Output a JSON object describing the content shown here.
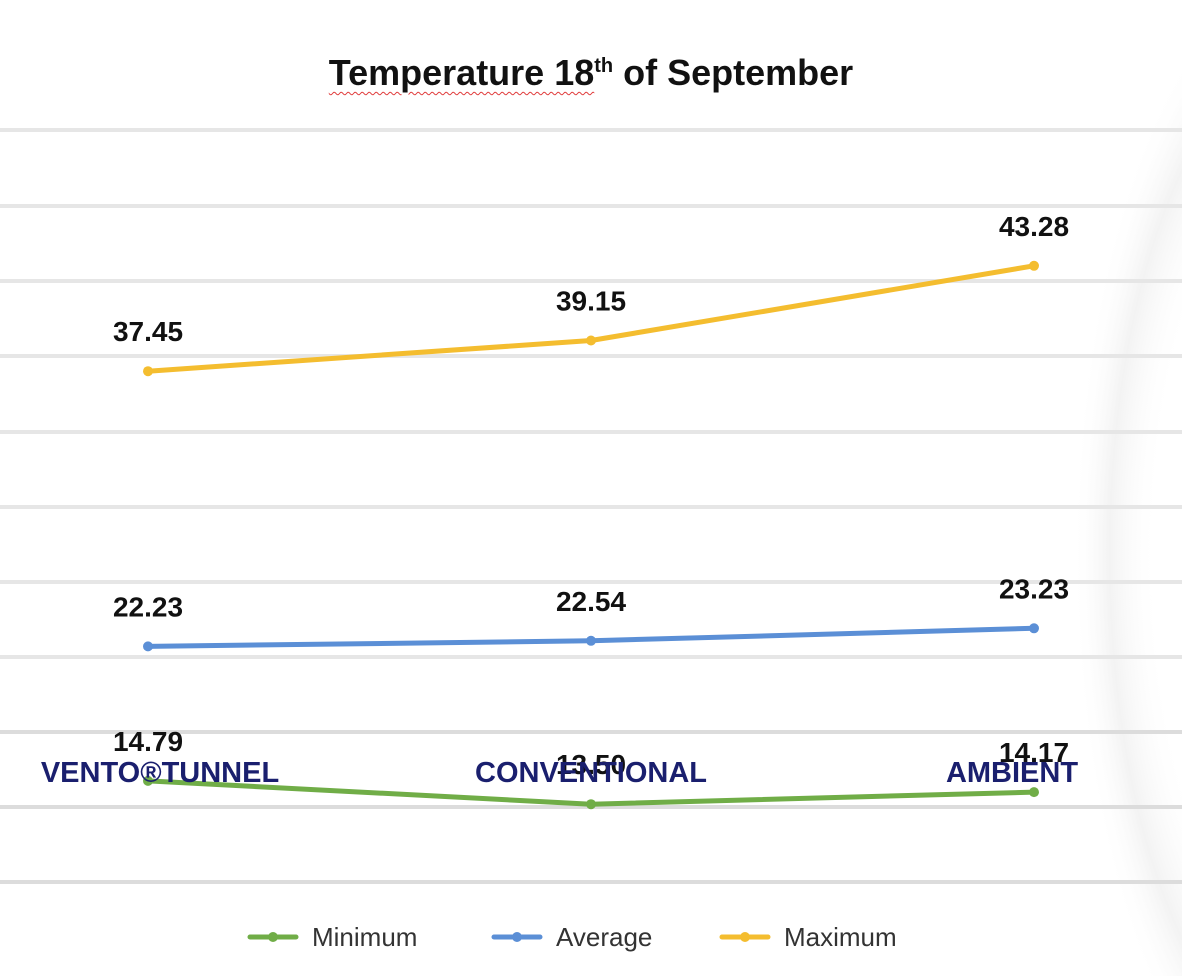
{
  "chart_data": {
    "type": "line",
    "title": "Temperature 18",
    "title_sup": "th",
    "title_rest": " of September",
    "categories": [
      "VENTO®TUNNEL",
      "CONVENTIONAL",
      "AMBIENT"
    ],
    "series": [
      {
        "name": "Minimum",
        "values": [
          14.79,
          13.5,
          14.17
        ],
        "labels": [
          "14.79",
          "13.50",
          "14.17"
        ],
        "color": "#70ad47"
      },
      {
        "name": "Average",
        "values": [
          22.23,
          22.54,
          23.23
        ],
        "labels": [
          "22.23",
          "22.54",
          "23.23"
        ],
        "color": "#5b8fd6"
      },
      {
        "name": "Maximum",
        "values": [
          37.45,
          39.15,
          43.28
        ],
        "labels": [
          "37.45",
          "39.15",
          "43.28"
        ],
        "color": "#f4bd2f"
      }
    ],
    "ylim": [
      5,
      50
    ],
    "grid": true,
    "legend": "bottom"
  }
}
